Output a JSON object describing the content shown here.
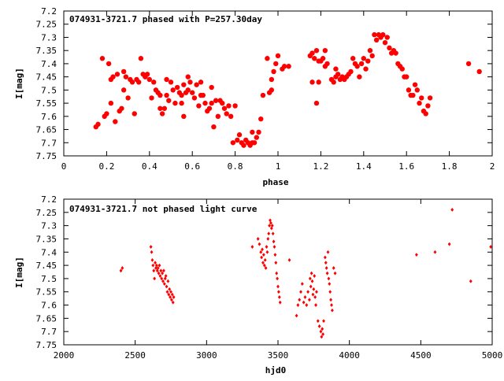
{
  "chart_data": [
    {
      "type": "scatter",
      "title": "074931-3721.7 phased with P=257.30day",
      "xlabel": "phase",
      "ylabel": "I[mag]",
      "xlim": [
        0,
        2
      ],
      "ylim": [
        7.2,
        7.75
      ],
      "y_inverted": true,
      "x_ticks": [
        "0",
        "0.2",
        "0.4",
        "0.6",
        "0.8",
        "1",
        "1.2",
        "1.4",
        "1.6",
        "1.8",
        "2"
      ],
      "y_ticks": [
        "7.2",
        "7.25",
        "7.3",
        "7.35",
        "7.4",
        "7.45",
        "7.5",
        "7.55",
        "7.6",
        "7.65",
        "7.7",
        "7.75"
      ],
      "marker_color": "#ff0000",
      "marker": "large filled circle",
      "points": [
        [
          0.15,
          7.64
        ],
        [
          0.16,
          7.63
        ],
        [
          0.18,
          7.38
        ],
        [
          0.19,
          7.6
        ],
        [
          0.2,
          7.59
        ],
        [
          0.21,
          7.4
        ],
        [
          0.22,
          7.55
        ],
        [
          0.22,
          7.46
        ],
        [
          0.23,
          7.45
        ],
        [
          0.24,
          7.62
        ],
        [
          0.25,
          7.44
        ],
        [
          0.26,
          7.58
        ],
        [
          0.27,
          7.57
        ],
        [
          0.28,
          7.43
        ],
        [
          0.28,
          7.5
        ],
        [
          0.29,
          7.45
        ],
        [
          0.3,
          7.53
        ],
        [
          0.31,
          7.46
        ],
        [
          0.32,
          7.47
        ],
        [
          0.33,
          7.59
        ],
        [
          0.34,
          7.46
        ],
        [
          0.35,
          7.47
        ],
        [
          0.36,
          7.38
        ],
        [
          0.37,
          7.44
        ],
        [
          0.38,
          7.45
        ],
        [
          0.39,
          7.44
        ],
        [
          0.4,
          7.46
        ],
        [
          0.41,
          7.53
        ],
        [
          0.42,
          7.47
        ],
        [
          0.43,
          7.5
        ],
        [
          0.44,
          7.51
        ],
        [
          0.45,
          7.52
        ],
        [
          0.45,
          7.57
        ],
        [
          0.46,
          7.59
        ],
        [
          0.47,
          7.57
        ],
        [
          0.48,
          7.52
        ],
        [
          0.48,
          7.46
        ],
        [
          0.49,
          7.54
        ],
        [
          0.5,
          7.47
        ],
        [
          0.51,
          7.5
        ],
        [
          0.52,
          7.55
        ],
        [
          0.53,
          7.49
        ],
        [
          0.54,
          7.51
        ],
        [
          0.55,
          7.52
        ],
        [
          0.55,
          7.55
        ],
        [
          0.56,
          7.6
        ],
        [
          0.56,
          7.48
        ],
        [
          0.57,
          7.51
        ],
        [
          0.58,
          7.5
        ],
        [
          0.58,
          7.45
        ],
        [
          0.59,
          7.47
        ],
        [
          0.6,
          7.51
        ],
        [
          0.61,
          7.53
        ],
        [
          0.62,
          7.48
        ],
        [
          0.63,
          7.56
        ],
        [
          0.64,
          7.47
        ],
        [
          0.64,
          7.52
        ],
        [
          0.65,
          7.52
        ],
        [
          0.66,
          7.55
        ],
        [
          0.67,
          7.58
        ],
        [
          0.68,
          7.57
        ],
        [
          0.69,
          7.55
        ],
        [
          0.69,
          7.49
        ],
        [
          0.7,
          7.64
        ],
        [
          0.71,
          7.54
        ],
        [
          0.72,
          7.6
        ],
        [
          0.73,
          7.54
        ],
        [
          0.74,
          7.55
        ],
        [
          0.75,
          7.57
        ],
        [
          0.76,
          7.59
        ],
        [
          0.77,
          7.56
        ],
        [
          0.78,
          7.6
        ],
        [
          0.79,
          7.7
        ],
        [
          0.8,
          7.56
        ],
        [
          0.81,
          7.69
        ],
        [
          0.82,
          7.67
        ],
        [
          0.83,
          7.7
        ],
        [
          0.84,
          7.71
        ],
        [
          0.85,
          7.69
        ],
        [
          0.86,
          7.7
        ],
        [
          0.87,
          7.71
        ],
        [
          0.88,
          7.66
        ],
        [
          0.88,
          7.7
        ],
        [
          0.89,
          7.7
        ],
        [
          0.9,
          7.68
        ],
        [
          0.91,
          7.66
        ],
        [
          0.92,
          7.61
        ],
        [
          0.93,
          7.52
        ],
        [
          0.95,
          7.38
        ],
        [
          0.96,
          7.51
        ],
        [
          0.97,
          7.5
        ],
        [
          0.97,
          7.46
        ],
        [
          0.98,
          7.43
        ],
        [
          0.99,
          7.4
        ],
        [
          1.0,
          7.37
        ],
        [
          1.02,
          7.42
        ],
        [
          1.03,
          7.41
        ],
        [
          1.05,
          7.41
        ],
        [
          1.15,
          7.37
        ],
        [
          1.16,
          7.36
        ],
        [
          1.16,
          7.47
        ],
        [
          1.17,
          7.38
        ],
        [
          1.18,
          7.55
        ],
        [
          1.18,
          7.35
        ],
        [
          1.19,
          7.39
        ],
        [
          1.19,
          7.47
        ],
        [
          1.2,
          7.39
        ],
        [
          1.21,
          7.38
        ],
        [
          1.22,
          7.41
        ],
        [
          1.22,
          7.35
        ],
        [
          1.23,
          7.4
        ],
        [
          1.25,
          7.46
        ],
        [
          1.26,
          7.47
        ],
        [
          1.27,
          7.45
        ],
        [
          1.27,
          7.42
        ],
        [
          1.28,
          7.44
        ],
        [
          1.29,
          7.46
        ],
        [
          1.3,
          7.45
        ],
        [
          1.31,
          7.46
        ],
        [
          1.32,
          7.45
        ],
        [
          1.33,
          7.44
        ],
        [
          1.34,
          7.43
        ],
        [
          1.35,
          7.38
        ],
        [
          1.36,
          7.4
        ],
        [
          1.37,
          7.41
        ],
        [
          1.38,
          7.45
        ],
        [
          1.39,
          7.4
        ],
        [
          1.4,
          7.38
        ],
        [
          1.41,
          7.42
        ],
        [
          1.42,
          7.39
        ],
        [
          1.43,
          7.35
        ],
        [
          1.44,
          7.37
        ],
        [
          1.45,
          7.29
        ],
        [
          1.46,
          7.31
        ],
        [
          1.47,
          7.29
        ],
        [
          1.48,
          7.3
        ],
        [
          1.49,
          7.29
        ],
        [
          1.5,
          7.32
        ],
        [
          1.51,
          7.3
        ],
        [
          1.52,
          7.34
        ],
        [
          1.53,
          7.36
        ],
        [
          1.54,
          7.35
        ],
        [
          1.55,
          7.36
        ],
        [
          1.56,
          7.4
        ],
        [
          1.57,
          7.41
        ],
        [
          1.58,
          7.42
        ],
        [
          1.59,
          7.45
        ],
        [
          1.6,
          7.45
        ],
        [
          1.61,
          7.5
        ],
        [
          1.62,
          7.52
        ],
        [
          1.63,
          7.52
        ],
        [
          1.64,
          7.48
        ],
        [
          1.65,
          7.5
        ],
        [
          1.66,
          7.55
        ],
        [
          1.67,
          7.53
        ],
        [
          1.68,
          7.58
        ],
        [
          1.69,
          7.59
        ],
        [
          1.7,
          7.56
        ],
        [
          1.71,
          7.53
        ],
        [
          1.89,
          7.4
        ],
        [
          1.94,
          7.43
        ]
      ]
    },
    {
      "type": "scatter",
      "title": "074931-3721.7 not phased light curve",
      "xlabel": "hjd0",
      "ylabel": "I[mag]",
      "xlim": [
        2000,
        5000
      ],
      "ylim": [
        7.2,
        7.75
      ],
      "y_inverted": true,
      "x_ticks": [
        "2000",
        "2500",
        "3000",
        "3500",
        "4000",
        "4500",
        "5000"
      ],
      "y_ticks": [
        "7.2",
        "7.25",
        "7.3",
        "7.35",
        "7.4",
        "7.45",
        "7.5",
        "7.55",
        "7.6",
        "7.65",
        "7.7",
        "7.75"
      ],
      "marker_color": "#ff0000",
      "marker": "small filled diamond",
      "points": [
        [
          2400,
          7.47
        ],
        [
          2410,
          7.46
        ],
        [
          2610,
          7.38
        ],
        [
          2615,
          7.4
        ],
        [
          2620,
          7.43
        ],
        [
          2625,
          7.45
        ],
        [
          2630,
          7.47
        ],
        [
          2635,
          7.5
        ],
        [
          2640,
          7.44
        ],
        [
          2645,
          7.46
        ],
        [
          2650,
          7.45
        ],
        [
          2655,
          7.47
        ],
        [
          2660,
          7.46
        ],
        [
          2665,
          7.48
        ],
        [
          2670,
          7.45
        ],
        [
          2675,
          7.49
        ],
        [
          2680,
          7.47
        ],
        [
          2685,
          7.5
        ],
        [
          2690,
          7.48
        ],
        [
          2695,
          7.51
        ],
        [
          2700,
          7.47
        ],
        [
          2705,
          7.52
        ],
        [
          2710,
          7.5
        ],
        [
          2715,
          7.49
        ],
        [
          2720,
          7.53
        ],
        [
          2725,
          7.55
        ],
        [
          2730,
          7.51
        ],
        [
          2735,
          7.56
        ],
        [
          2740,
          7.54
        ],
        [
          2745,
          7.57
        ],
        [
          2750,
          7.55
        ],
        [
          2755,
          7.58
        ],
        [
          2760,
          7.56
        ],
        [
          2765,
          7.59
        ],
        [
          2770,
          7.57
        ],
        [
          3320,
          7.38
        ],
        [
          3360,
          7.35
        ],
        [
          3370,
          7.37
        ],
        [
          3380,
          7.4
        ],
        [
          3385,
          7.42
        ],
        [
          3390,
          7.39
        ],
        [
          3395,
          7.44
        ],
        [
          3400,
          7.41
        ],
        [
          3405,
          7.45
        ],
        [
          3410,
          7.43
        ],
        [
          3415,
          7.46
        ],
        [
          3420,
          7.38
        ],
        [
          3425,
          7.4
        ],
        [
          3430,
          7.35
        ],
        [
          3435,
          7.33
        ],
        [
          3440,
          7.3
        ],
        [
          3445,
          7.28
        ],
        [
          3450,
          7.29
        ],
        [
          3455,
          7.31
        ],
        [
          3460,
          7.3
        ],
        [
          3465,
          7.33
        ],
        [
          3470,
          7.36
        ],
        [
          3475,
          7.38
        ],
        [
          3480,
          7.41
        ],
        [
          3485,
          7.44
        ],
        [
          3490,
          7.48
        ],
        [
          3495,
          7.5
        ],
        [
          3500,
          7.53
        ],
        [
          3505,
          7.55
        ],
        [
          3510,
          7.57
        ],
        [
          3515,
          7.59
        ],
        [
          3580,
          7.43
        ],
        [
          3630,
          7.64
        ],
        [
          3640,
          7.6
        ],
        [
          3650,
          7.58
        ],
        [
          3660,
          7.55
        ],
        [
          3670,
          7.52
        ],
        [
          3680,
          7.59
        ],
        [
          3690,
          7.57
        ],
        [
          3700,
          7.6
        ],
        [
          3710,
          7.55
        ],
        [
          3720,
          7.58
        ],
        [
          3725,
          7.5
        ],
        [
          3730,
          7.53
        ],
        [
          3735,
          7.48
        ],
        [
          3740,
          7.51
        ],
        [
          3745,
          7.56
        ],
        [
          3750,
          7.54
        ],
        [
          3755,
          7.49
        ],
        [
          3760,
          7.57
        ],
        [
          3765,
          7.6
        ],
        [
          3770,
          7.55
        ],
        [
          3780,
          7.66
        ],
        [
          3790,
          7.68
        ],
        [
          3800,
          7.7
        ],
        [
          3805,
          7.72
        ],
        [
          3810,
          7.69
        ],
        [
          3815,
          7.71
        ],
        [
          3820,
          7.66
        ],
        [
          3830,
          7.42
        ],
        [
          3835,
          7.44
        ],
        [
          3840,
          7.46
        ],
        [
          3845,
          7.48
        ],
        [
          3850,
          7.4
        ],
        [
          3855,
          7.5
        ],
        [
          3860,
          7.52
        ],
        [
          3865,
          7.55
        ],
        [
          3870,
          7.58
        ],
        [
          3875,
          7.6
        ],
        [
          3880,
          7.62
        ],
        [
          3890,
          7.46
        ],
        [
          3900,
          7.48
        ],
        [
          4470,
          7.41
        ],
        [
          4600,
          7.4
        ],
        [
          4700,
          7.37
        ],
        [
          4720,
          7.24
        ],
        [
          4850,
          7.51
        ],
        [
          4990,
          7.38
        ]
      ]
    }
  ]
}
